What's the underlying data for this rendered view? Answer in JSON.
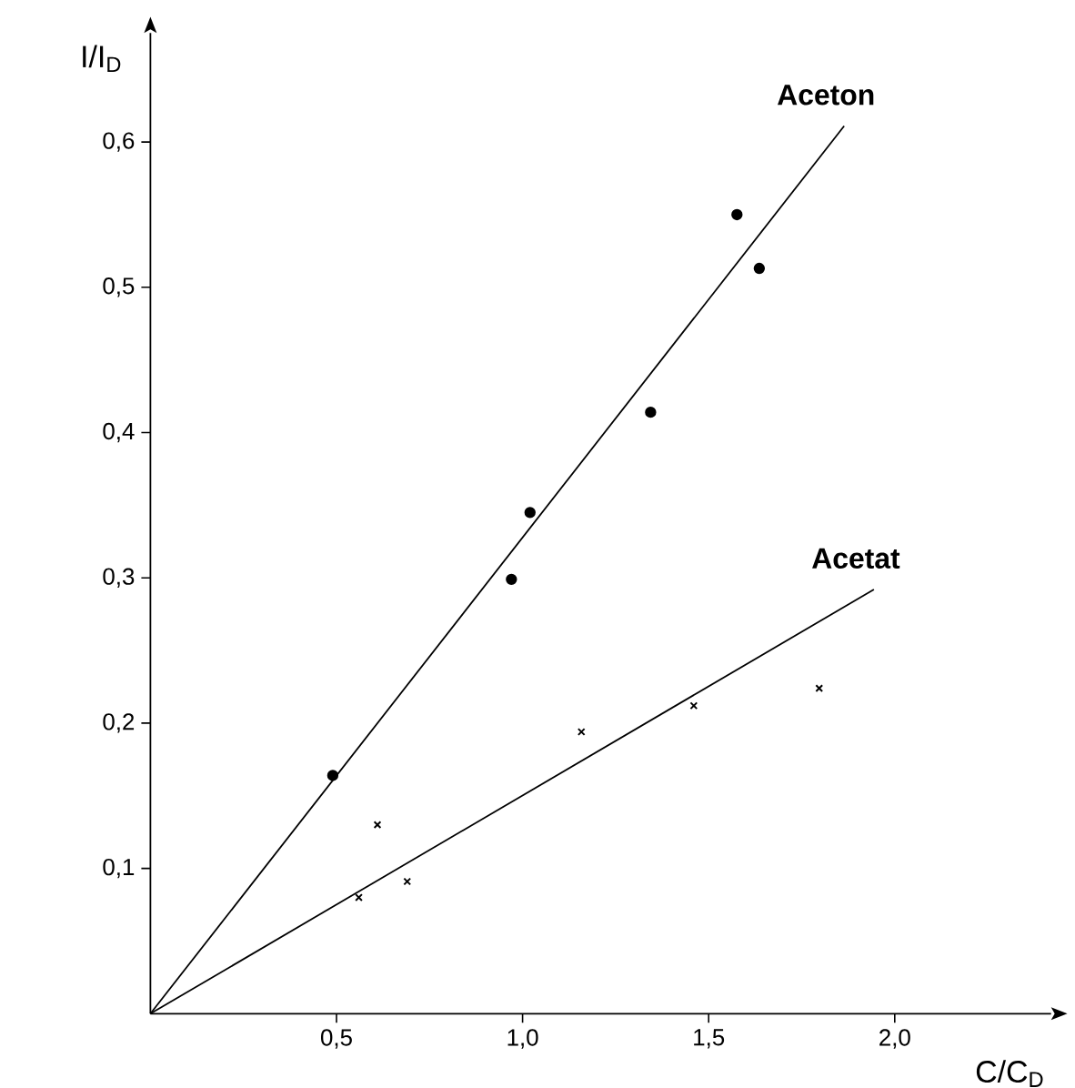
{
  "chart_data": {
    "type": "scatter",
    "xlabel": "C/C$_{D}$",
    "ylabel": "I/I$_{D}$",
    "xlim": [
      0,
      2.42
    ],
    "ylim": [
      0,
      0.675
    ],
    "xticks": [
      {
        "value": 0.5,
        "label": "0,5"
      },
      {
        "value": 1.0,
        "label": "1,0"
      },
      {
        "value": 1.5,
        "label": "1,5"
      },
      {
        "value": 2.0,
        "label": "2,0"
      }
    ],
    "yticks": [
      {
        "value": 0.1,
        "label": "0,1"
      },
      {
        "value": 0.2,
        "label": "0,2"
      },
      {
        "value": 0.3,
        "label": "0,3"
      },
      {
        "value": 0.4,
        "label": "0,4"
      },
      {
        "value": 0.5,
        "label": "0,5"
      },
      {
        "value": 0.6,
        "label": "0,6"
      }
    ],
    "grid": false,
    "series": [
      {
        "marker": "circle",
        "color": "#000000",
        "x": [
          0.49,
          0.97,
          1.02,
          1.344,
          1.576,
          1.636
        ],
        "values": [
          0.164,
          0.299,
          0.345,
          0.414,
          0.55,
          0.513
        ]
      },
      {
        "marker": "cross",
        "color": "#000000",
        "x": [
          0.56,
          0.61,
          0.69,
          1.158,
          1.46,
          1.797
        ],
        "values": [
          0.08,
          0.13,
          0.091,
          0.194,
          0.212,
          0.224
        ]
      },
      {
        "type": "line",
        "name": "Aceton",
        "marker": "none",
        "line_style": "solid",
        "color": "#000000",
        "x": [
          0,
          1.864
        ],
        "values": [
          0,
          0.611
        ]
      },
      {
        "type": "line",
        "name": "Acetat",
        "marker": "none",
        "line_style": "solid",
        "color": "#000000",
        "x": [
          0,
          1.944
        ],
        "values": [
          0,
          0.292
        ]
      }
    ]
  }
}
